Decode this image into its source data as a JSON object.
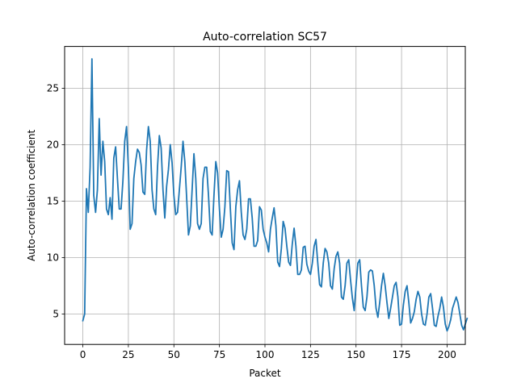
{
  "chart_data": {
    "type": "line",
    "title": "Auto-correlation SC57",
    "xlabel": "Packet",
    "ylabel": "Auto-correlation coefficient",
    "xlim": [
      -10,
      210
    ],
    "ylim": [
      2.3,
      28.7
    ],
    "xticks": [
      0,
      25,
      50,
      75,
      100,
      125,
      150,
      175,
      200
    ],
    "yticks": [
      5,
      10,
      15,
      20,
      25
    ],
    "grid": true,
    "series_color": "#1f77b4",
    "series": [
      {
        "values": [
          4.4,
          5.0,
          16.1,
          14.0,
          18.0,
          27.6,
          15.5,
          14.0,
          16.0,
          22.3,
          17.3,
          20.3,
          18.5,
          14.3,
          13.8,
          15.3,
          13.4,
          18.8,
          19.8,
          17.0,
          14.3,
          14.3,
          16.8,
          20.3,
          21.6,
          18.0,
          12.5,
          13.0,
          17.0,
          18.5,
          19.6,
          19.3,
          18.2,
          15.8,
          15.6,
          19.5,
          21.6,
          20.3,
          16.0,
          14.3,
          13.8,
          18.0,
          20.8,
          19.7,
          16.0,
          13.5,
          16.3,
          17.8,
          20.0,
          18.4,
          15.5,
          13.8,
          14.0,
          16.0,
          18.0,
          20.3,
          18.5,
          15.3,
          12.0,
          12.8,
          16.0,
          19.2,
          17.0,
          13.0,
          12.5,
          13.0,
          17.0,
          18.0,
          18.0,
          15.5,
          12.3,
          12.0,
          15.5,
          18.5,
          17.5,
          14.3,
          11.8,
          12.5,
          14.5,
          17.7,
          17.6,
          14.3,
          11.3,
          10.7,
          14.5,
          16.0,
          16.8,
          14.0,
          12.0,
          11.6,
          12.5,
          15.2,
          15.2,
          13.5,
          11.0,
          11.0,
          11.5,
          14.5,
          14.2,
          12.5,
          11.8,
          11.3,
          10.5,
          12.5,
          13.5,
          14.4,
          12.8,
          9.6,
          9.2,
          10.8,
          13.2,
          12.6,
          11.0,
          9.6,
          9.3,
          11.2,
          12.6,
          11.0,
          8.5,
          8.5,
          8.9,
          10.9,
          11.0,
          9.4,
          8.8,
          8.5,
          9.5,
          11.0,
          11.6,
          9.5,
          7.6,
          7.4,
          9.5,
          10.8,
          10.5,
          9.5,
          7.5,
          7.2,
          9.0,
          10.1,
          10.5,
          9.5,
          6.5,
          6.3,
          7.5,
          9.5,
          9.8,
          8.0,
          6.4,
          5.3,
          7.5,
          9.5,
          9.8,
          7.5,
          5.6,
          5.3,
          6.5,
          8.7,
          8.9,
          8.8,
          7.5,
          5.5,
          4.7,
          6.0,
          7.5,
          8.6,
          7.5,
          6.0,
          4.6,
          5.5,
          6.5,
          7.5,
          7.8,
          6.5,
          4.0,
          4.1,
          5.8,
          7.0,
          7.5,
          6.0,
          4.2,
          4.6,
          5.2,
          6.3,
          7.0,
          6.5,
          5.0,
          4.1,
          4.0,
          5.0,
          6.5,
          6.8,
          5.5,
          4.0,
          3.9,
          4.8,
          5.5,
          6.5,
          5.6,
          4.1,
          3.5,
          3.9,
          4.5,
          5.5,
          6.0,
          6.5,
          6.0,
          5.0,
          4.0,
          3.6,
          4.1,
          4.6
        ]
      }
    ]
  }
}
